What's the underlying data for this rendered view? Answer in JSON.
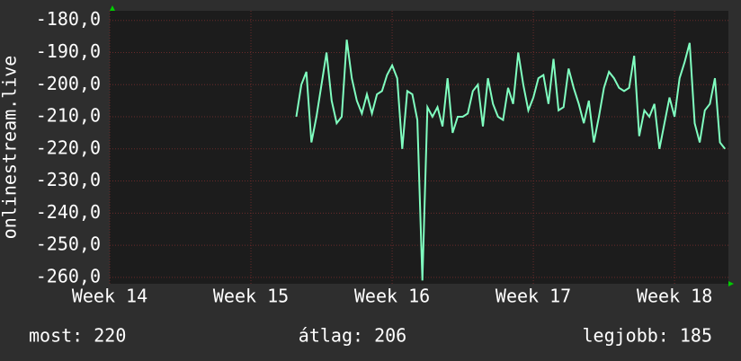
{
  "chart_data": {
    "type": "line",
    "y_label": "onlinestream.live",
    "x": [
      9.25,
      9.5,
      9.75,
      10,
      10.25,
      10.5,
      10.75,
      11,
      11.25,
      11.5,
      11.75,
      12,
      12.25,
      12.5,
      12.75,
      13,
      13.25,
      13.5,
      13.75,
      14,
      14.25,
      14.5,
      14.75,
      15,
      15.25,
      15.5,
      15.75,
      16,
      16.25,
      16.5,
      16.75,
      17,
      17.25,
      17.5,
      17.75,
      18,
      18.25,
      18.5,
      18.75,
      19,
      19.25,
      19.5,
      19.75,
      20,
      20.25,
      20.5,
      20.75,
      21,
      21.25,
      21.5,
      21.75,
      22,
      22.25,
      22.5,
      22.75,
      23,
      23.25,
      23.5,
      23.75,
      24,
      24.25,
      24.5,
      24.75,
      25,
      25.25,
      25.5,
      25.75,
      26,
      26.25,
      26.5,
      26.75,
      27,
      27.25,
      27.5,
      27.75,
      28,
      28.25,
      28.5,
      28.75,
      29,
      29.25,
      29.5,
      29.75,
      30,
      30.25,
      30.5
    ],
    "series": [
      {
        "color": "#80ffc0",
        "values": [
          -210,
          -200,
          -196,
          -218,
          -210,
          -200,
          -190,
          -205,
          -212,
          -210,
          -186,
          -198,
          -205,
          -209,
          -203,
          -209,
          -203,
          -202,
          -197,
          -194,
          -198,
          -220,
          -202,
          -203,
          -211,
          -261,
          -207,
          -210,
          -207,
          -213,
          -198,
          -215,
          -210,
          -210,
          -209,
          -202,
          -200,
          -213,
          -198,
          -206,
          -210,
          -211,
          -201,
          -206,
          -190,
          -200,
          -208,
          -204,
          -198,
          -197,
          -206,
          -192,
          -208,
          -207,
          -195,
          -201,
          -206,
          -212,
          -205,
          -218,
          -210,
          -201,
          -196,
          -198,
          -201,
          -202,
          -201,
          -191,
          -216,
          -208,
          -210,
          -206,
          -220,
          -212,
          -204,
          -210,
          -198,
          -193,
          -187,
          -212,
          -218,
          -208,
          -206,
          -198,
          -218,
          -220
        ]
      }
    ],
    "xlim": [
      0,
      30.67
    ],
    "ylim": [
      -262,
      -177
    ],
    "xticks": [
      {
        "value": 0,
        "label": "Week 14"
      },
      {
        "value": 7,
        "label": "Week 15"
      },
      {
        "value": 14,
        "label": "Week 16"
      },
      {
        "value": 21,
        "label": "Week 17"
      },
      {
        "value": 28,
        "label": "Week 18"
      }
    ],
    "yticks": [
      {
        "value": -180,
        "label": "-180,0"
      },
      {
        "value": -190,
        "label": "-190,0"
      },
      {
        "value": -200,
        "label": "-200,0"
      },
      {
        "value": -210,
        "label": "-210,0"
      },
      {
        "value": -220,
        "label": "-220,0"
      },
      {
        "value": -230,
        "label": "-230,0"
      },
      {
        "value": -240,
        "label": "-240,0"
      },
      {
        "value": -250,
        "label": "-250,0"
      },
      {
        "value": -260,
        "label": "-260,0"
      }
    ],
    "grid": true,
    "footer": [
      "most: 220",
      "átlag: 206",
      "legjobb: 185"
    ]
  }
}
